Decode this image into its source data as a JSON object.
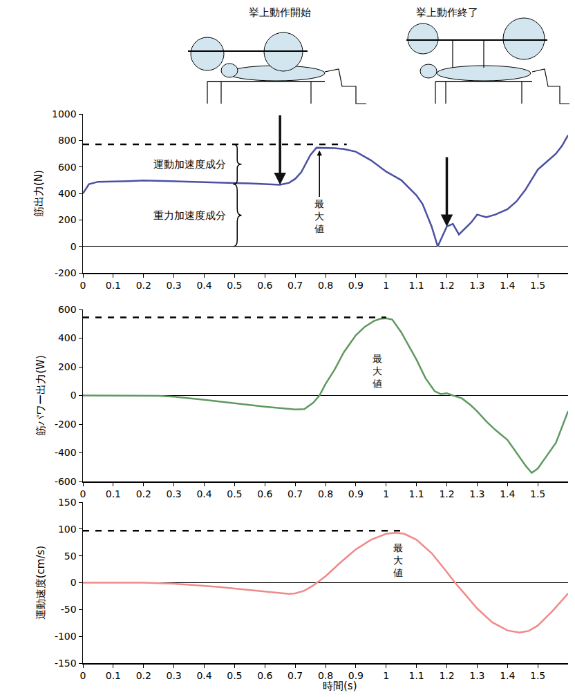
{
  "chart_data": [
    {
      "type": "line",
      "ylabel": "筋出力(N)",
      "color": "#4b4fa3",
      "grid": false,
      "xlim": [
        0,
        1.6
      ],
      "xticks": [
        0,
        0.1,
        0.2,
        0.3,
        0.4,
        0.5,
        0.6,
        0.7,
        0.8,
        0.9,
        1,
        1.1,
        1.2,
        1.3,
        1.4,
        1.5
      ],
      "ylim": [
        -200,
        1000
      ],
      "yticks": [
        -200,
        0,
        200,
        400,
        600,
        800,
        1000
      ],
      "x": [
        0,
        0.02,
        0.05,
        0.1,
        0.15,
        0.2,
        0.25,
        0.3,
        0.35,
        0.4,
        0.45,
        0.5,
        0.55,
        0.6,
        0.65,
        0.68,
        0.7,
        0.72,
        0.75,
        0.77,
        0.8,
        0.83,
        0.86,
        0.9,
        0.95,
        1.0,
        1.05,
        1.1,
        1.12,
        1.15,
        1.17,
        1.2,
        1.22,
        1.24,
        1.28,
        1.3,
        1.33,
        1.36,
        1.4,
        1.43,
        1.46,
        1.5,
        1.53,
        1.56,
        1.58,
        1.6
      ],
      "values": [
        400,
        470,
        488,
        490,
        493,
        498,
        494,
        490,
        486,
        482,
        480,
        478,
        476,
        472,
        465,
        480,
        510,
        560,
        690,
        745,
        745,
        742,
        735,
        715,
        650,
        565,
        500,
        385,
        320,
        150,
        0,
        150,
        170,
        90,
        180,
        240,
        220,
        240,
        280,
        340,
        430,
        580,
        640,
        700,
        760,
        840
      ],
      "events": [
        {
          "label": "挙上動作開始",
          "x": 0.65,
          "y": 465
        },
        {
          "label": "挙上動作終了",
          "x": 1.2,
          "y": 150
        }
      ],
      "components": [
        {
          "label": "運動加速度成分",
          "from": 470,
          "to": 770
        },
        {
          "label": "重力加速度成分",
          "from": 0,
          "to": 470
        }
      ],
      "reference_line": {
        "y": 770,
        "x": [
          0,
          0.87
        ]
      },
      "max_label": {
        "text": "最大値",
        "x": 0.78,
        "y": 230,
        "arrow_to": {
          "x": 0.78,
          "y": 725
        }
      }
    },
    {
      "type": "line",
      "ylabel": "筋パワー出力(W)",
      "color": "#5f9960",
      "grid": false,
      "xlim": [
        0,
        1.6
      ],
      "xticks": [
        0,
        0.1,
        0.2,
        0.3,
        0.4,
        0.5,
        0.6,
        0.7,
        0.8,
        0.9,
        1,
        1.1,
        1.2,
        1.3,
        1.4,
        1.5
      ],
      "ylim": [
        -600,
        600
      ],
      "yticks": [
        -600,
        -400,
        -200,
        0,
        200,
        400,
        600
      ],
      "x": [
        0,
        0.1,
        0.2,
        0.25,
        0.3,
        0.35,
        0.4,
        0.45,
        0.5,
        0.55,
        0.6,
        0.65,
        0.7,
        0.73,
        0.76,
        0.78,
        0.8,
        0.83,
        0.86,
        0.9,
        0.93,
        0.96,
        0.98,
        1.0,
        1.02,
        1.05,
        1.08,
        1.1,
        1.13,
        1.16,
        1.18,
        1.2,
        1.22,
        1.25,
        1.28,
        1.3,
        1.33,
        1.36,
        1.4,
        1.43,
        1.46,
        1.48,
        1.5,
        1.53,
        1.56,
        1.6
      ],
      "values": [
        0,
        0,
        0,
        -3,
        -8,
        -18,
        -30,
        -42,
        -55,
        -65,
        -78,
        -88,
        -98,
        -95,
        -50,
        0,
        80,
        180,
        300,
        420,
        480,
        520,
        535,
        538,
        530,
        440,
        330,
        250,
        120,
        30,
        10,
        15,
        0,
        -20,
        -70,
        -110,
        -180,
        -240,
        -310,
        -400,
        -490,
        -540,
        -510,
        -420,
        -330,
        -110
      ],
      "reference_line": {
        "y": 545,
        "x": [
          0,
          1.0
        ]
      },
      "max_label": {
        "text": "最大値",
        "x": 0.97,
        "y": 170
      }
    },
    {
      "type": "line",
      "ylabel": "運動速度(cm/s)",
      "xlabel": "時間(s)",
      "color": "#f08a8a",
      "grid": false,
      "xlim": [
        0,
        1.6
      ],
      "xticks": [
        0,
        0.1,
        0.2,
        0.3,
        0.4,
        0.5,
        0.6,
        0.7,
        0.8,
        0.9,
        1,
        1.1,
        1.2,
        1.3,
        1.4,
        1.5
      ],
      "ylim": [
        -150,
        150
      ],
      "yticks": [
        -150,
        -100,
        -50,
        0,
        50,
        100,
        150
      ],
      "x": [
        0,
        0.1,
        0.2,
        0.25,
        0.3,
        0.35,
        0.4,
        0.45,
        0.5,
        0.55,
        0.6,
        0.65,
        0.68,
        0.7,
        0.73,
        0.76,
        0.8,
        0.85,
        0.9,
        0.95,
        1.0,
        1.03,
        1.06,
        1.1,
        1.15,
        1.2,
        1.23,
        1.25,
        1.3,
        1.35,
        1.4,
        1.44,
        1.47,
        1.5,
        1.55,
        1.6
      ],
      "values": [
        0,
        0,
        0,
        -1,
        -2,
        -4,
        -6,
        -8,
        -11,
        -14,
        -17,
        -20,
        -21,
        -20,
        -15,
        -5,
        12,
        38,
        62,
        80,
        91,
        93,
        91,
        80,
        55,
        20,
        -2,
        -15,
        -48,
        -74,
        -89,
        -93,
        -90,
        -80,
        -52,
        -20
      ],
      "reference_line": {
        "y": 97,
        "x": [
          0,
          1.05
        ]
      },
      "max_label": {
        "text": "最大値",
        "x": 1.04,
        "y": 42
      }
    }
  ]
}
